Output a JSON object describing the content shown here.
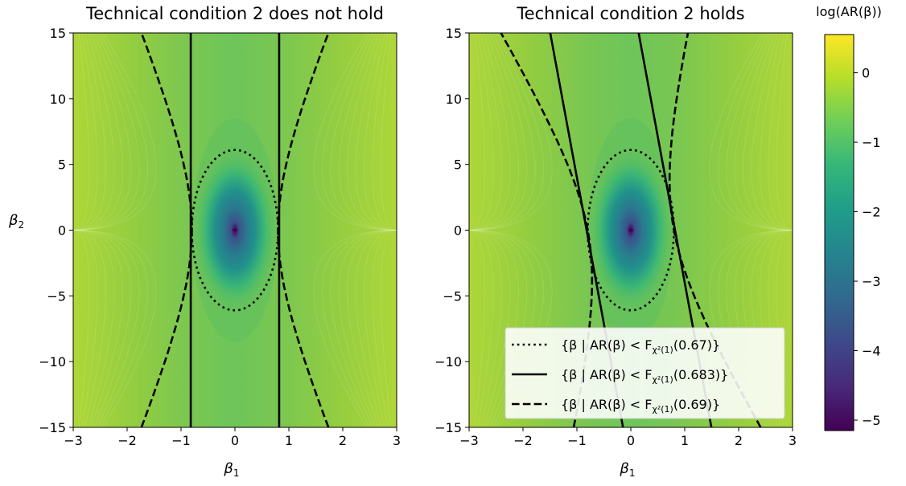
{
  "chart_data": [
    {
      "type": "heatmap",
      "title": "Technical condition 2 does not hold",
      "xlabel": "β",
      "xlabel_sub": "1",
      "ylabel": "β",
      "ylabel_sub": "2",
      "xlim": [
        -3,
        3
      ],
      "ylim": [
        -15,
        15
      ],
      "xticks": [
        -3,
        -2,
        -1,
        0,
        1,
        2,
        3
      ],
      "xtick_labels": [
        "−3",
        "−2",
        "−1",
        "0",
        "1",
        "2",
        "3"
      ],
      "yticks": [
        -15,
        -10,
        -5,
        0,
        5,
        10,
        15
      ],
      "ytick_labels": [
        "−15",
        "−10",
        "−5",
        "0",
        "5",
        "10",
        "15"
      ],
      "field": "log(AR(β))",
      "curves": [
        {
          "style": "dotted",
          "shape": "ellipse",
          "center": [
            0,
            0
          ],
          "semi_axes": [
            0.8,
            6.1
          ]
        },
        {
          "style": "solid",
          "shape": "vertical-lines",
          "x": [
            -0.82,
            0.82
          ]
        },
        {
          "style": "dashed",
          "shape": "hyperbola",
          "a": 0.8,
          "b": 7.8
        }
      ]
    },
    {
      "type": "heatmap",
      "title": "Technical condition 2 holds",
      "xlabel": "β",
      "xlabel_sub": "1",
      "ylabel": "",
      "xlim": [
        -3,
        3
      ],
      "ylim": [
        -15,
        15
      ],
      "xticks": [
        -3,
        -2,
        -1,
        0,
        1,
        2,
        3
      ],
      "xtick_labels": [
        "−3",
        "−2",
        "−1",
        "0",
        "1",
        "2",
        "3"
      ],
      "yticks": [
        -15,
        -10,
        -5,
        0,
        5,
        10,
        15
      ],
      "ytick_labels": [
        "−15",
        "−10",
        "−5",
        "0",
        "5",
        "10",
        "15"
      ],
      "field": "log(AR(β))",
      "curves": [
        {
          "style": "dotted",
          "shape": "ellipse",
          "center": [
            0,
            0
          ],
          "semi_axes": [
            0.8,
            6.1
          ]
        },
        {
          "style": "solid",
          "shape": "tilted-lines",
          "x_at_y0": [
            -0.82,
            0.82
          ],
          "slope_dx_per_dy": -0.045
        },
        {
          "style": "dashed",
          "shape": "tilted-hyperbola",
          "a": 0.8,
          "b": 7.8,
          "shear": -0.045
        }
      ],
      "legend": {
        "placement": "lower-right",
        "entries": [
          {
            "style": "dotted",
            "prefix": "{β | AR(β) < F",
            "sub": "χ²(1)",
            "suffix": "(0.67)}"
          },
          {
            "style": "solid",
            "prefix": "{β | AR(β) < F",
            "sub": "χ²(1)",
            "suffix": "(0.683)}"
          },
          {
            "style": "dashed",
            "prefix": "{β | AR(β) < F",
            "sub": "χ²(1)",
            "suffix": "(0.69)}"
          }
        ]
      }
    }
  ],
  "colorbar": {
    "title": "log(AR(β))",
    "range": [
      -5.15,
      0.55
    ],
    "ticks": [
      0,
      -1,
      -2,
      -3,
      -4,
      -5
    ],
    "tick_labels": [
      "0",
      "−1",
      "−2",
      "−3",
      "−4",
      "−5"
    ],
    "colormap": "viridis",
    "colors": [
      "#440154",
      "#482878",
      "#3e4989",
      "#31688e",
      "#26828e",
      "#1f9e89",
      "#35b779",
      "#6ece58",
      "#b5de2b",
      "#fde725"
    ]
  }
}
